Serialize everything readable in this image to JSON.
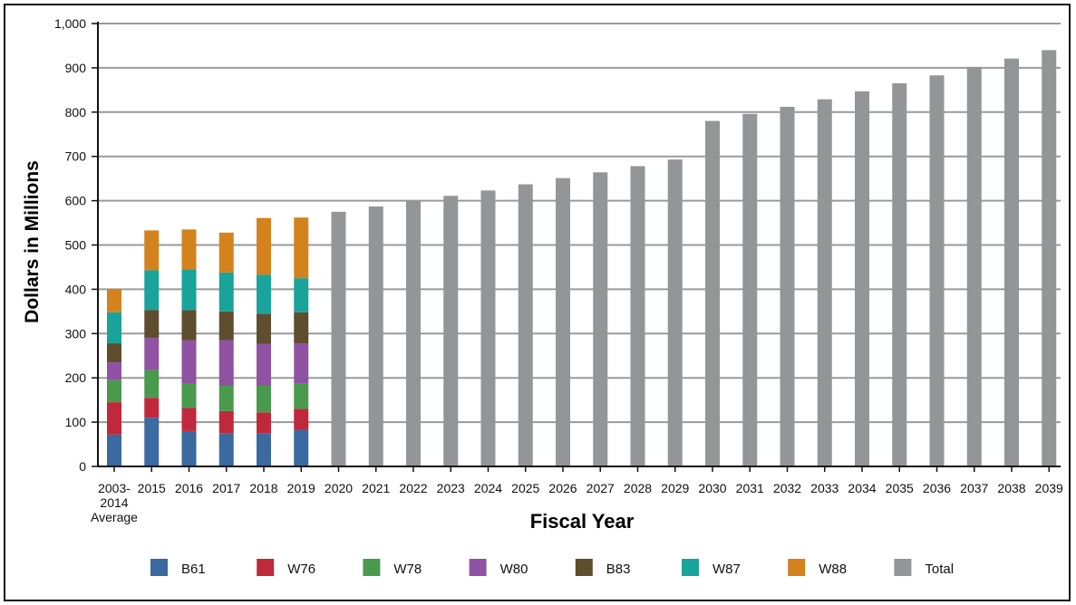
{
  "chart_data": {
    "type": "bar",
    "stacked": true,
    "title": "",
    "xlabel": "Fiscal Year",
    "ylabel": "Dollars in Millions",
    "ylim": [
      0,
      1000
    ],
    "yticks": [
      "0",
      "100",
      "200",
      "300",
      "400",
      "500",
      "600",
      "700",
      "800",
      "900",
      "1,000"
    ],
    "ytick_values": [
      0,
      100,
      200,
      300,
      400,
      500,
      600,
      700,
      800,
      900,
      1000
    ],
    "grid": true,
    "legend_position": "bottom",
    "categories": [
      "2003-2014 Average",
      "2015",
      "2016",
      "2017",
      "2018",
      "2019",
      "2020",
      "2021",
      "2022",
      "2023",
      "2024",
      "2025",
      "2026",
      "2027",
      "2028",
      "2029",
      "2030",
      "2031",
      "2032",
      "2033",
      "2034",
      "2035",
      "2036",
      "2037",
      "2038",
      "2039"
    ],
    "category_label_lines": [
      [
        "2003-",
        "2014",
        "Average"
      ],
      [
        "2015"
      ],
      [
        "2016"
      ],
      [
        "2017"
      ],
      [
        "2018"
      ],
      [
        "2019"
      ],
      [
        "2020"
      ],
      [
        "2021"
      ],
      [
        "2022"
      ],
      [
        "2023"
      ],
      [
        "2024"
      ],
      [
        "2025"
      ],
      [
        "2026"
      ],
      [
        "2027"
      ],
      [
        "2028"
      ],
      [
        "2029"
      ],
      [
        "2030"
      ],
      [
        "2031"
      ],
      [
        "2032"
      ],
      [
        "2033"
      ],
      [
        "2034"
      ],
      [
        "2035"
      ],
      [
        "2036"
      ],
      [
        "2037"
      ],
      [
        "2038"
      ],
      [
        "2039"
      ]
    ],
    "series": [
      {
        "name": "B61",
        "color": "#3a6aa0",
        "values": [
          72,
          110,
          80,
          75,
          75,
          82,
          null,
          null,
          null,
          null,
          null,
          null,
          null,
          null,
          null,
          null,
          null,
          null,
          null,
          null,
          null,
          null,
          null,
          null,
          null,
          null
        ]
      },
      {
        "name": "W76",
        "color": "#c0283c",
        "values": [
          73,
          45,
          52,
          50,
          47,
          48,
          null,
          null,
          null,
          null,
          null,
          null,
          null,
          null,
          null,
          null,
          null,
          null,
          null,
          null,
          null,
          null,
          null,
          null,
          null,
          null
        ]
      },
      {
        "name": "W78",
        "color": "#4a9a4e",
        "values": [
          50,
          63,
          55,
          57,
          60,
          58,
          null,
          null,
          null,
          null,
          null,
          null,
          null,
          null,
          null,
          null,
          null,
          null,
          null,
          null,
          null,
          null,
          null,
          null,
          null,
          null
        ]
      },
      {
        "name": "W80",
        "color": "#9052a2",
        "values": [
          40,
          72,
          98,
          103,
          95,
          90,
          null,
          null,
          null,
          null,
          null,
          null,
          null,
          null,
          null,
          null,
          null,
          null,
          null,
          null,
          null,
          null,
          null,
          null,
          null,
          null
        ]
      },
      {
        "name": "B83",
        "color": "#5e4e2e",
        "values": [
          43,
          63,
          68,
          65,
          68,
          70,
          null,
          null,
          null,
          null,
          null,
          null,
          null,
          null,
          null,
          null,
          null,
          null,
          null,
          null,
          null,
          null,
          null,
          null,
          null,
          null
        ]
      },
      {
        "name": "W87",
        "color": "#1aa39a",
        "values": [
          70,
          90,
          92,
          88,
          88,
          77,
          null,
          null,
          null,
          null,
          null,
          null,
          null,
          null,
          null,
          null,
          null,
          null,
          null,
          null,
          null,
          null,
          null,
          null,
          null,
          null
        ]
      },
      {
        "name": "W88",
        "color": "#d4821e",
        "values": [
          53,
          90,
          90,
          90,
          128,
          137,
          null,
          null,
          null,
          null,
          null,
          null,
          null,
          null,
          null,
          null,
          null,
          null,
          null,
          null,
          null,
          null,
          null,
          null,
          null,
          null
        ]
      },
      {
        "name": "Total",
        "color": "#939597",
        "values": [
          null,
          null,
          null,
          null,
          null,
          null,
          575,
          587,
          600,
          611,
          623,
          637,
          651,
          664,
          678,
          693,
          780,
          796,
          812,
          829,
          847,
          865,
          883,
          902,
          921,
          940
        ]
      }
    ]
  }
}
